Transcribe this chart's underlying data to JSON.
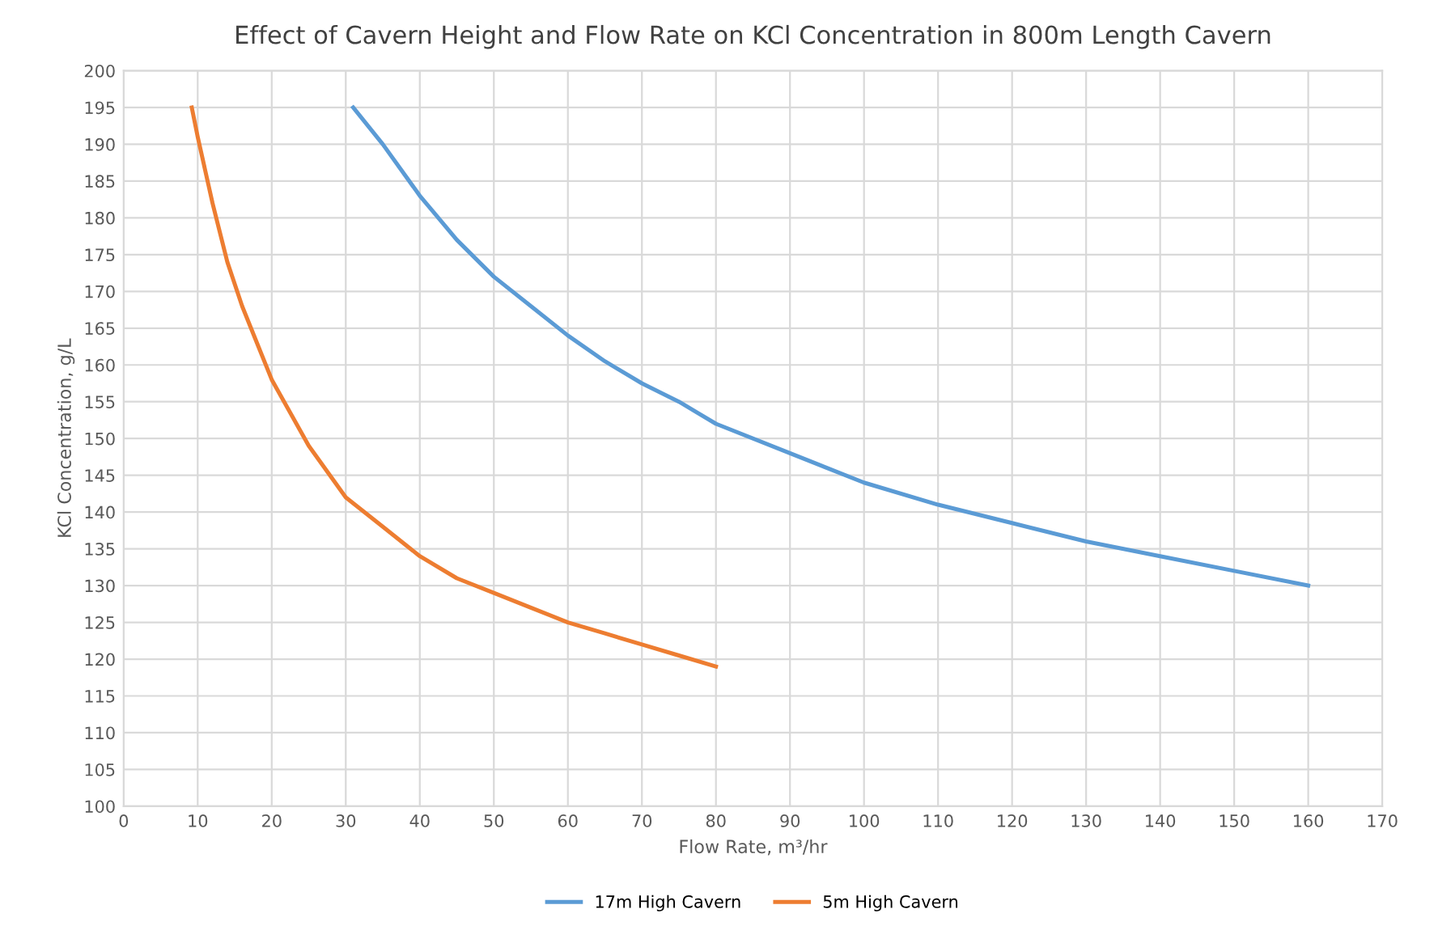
{
  "chart_data": {
    "type": "line",
    "title": "Effect of Cavern Height and Flow Rate on KCl Concentration in 800m Length Cavern",
    "xlabel": "Flow Rate, m³/hr",
    "ylabel": "KCl Concentration, g/L",
    "xlim": [
      0,
      170
    ],
    "xticks": [
      0,
      10,
      20,
      30,
      40,
      50,
      60,
      70,
      80,
      90,
      100,
      110,
      120,
      130,
      140,
      150,
      160,
      170
    ],
    "ylim": [
      100,
      200
    ],
    "yticks": [
      100,
      105,
      110,
      115,
      120,
      125,
      130,
      135,
      140,
      145,
      150,
      155,
      160,
      165,
      170,
      175,
      180,
      185,
      190,
      195,
      200
    ],
    "grid": true,
    "legend": "bottom",
    "marker": "none",
    "line_style": "solid",
    "series": [
      {
        "name": "17m High Cavern",
        "color": "#5b9bd5",
        "x": [
          31,
          35,
          40,
          45,
          50,
          55,
          60,
          65,
          70,
          75,
          80,
          90,
          100,
          110,
          120,
          130,
          140,
          150,
          160
        ],
        "values": [
          195,
          190,
          183,
          177,
          172,
          168,
          164,
          160.5,
          157.5,
          155,
          152,
          148,
          144,
          141,
          138.5,
          136,
          134,
          132,
          130
        ]
      },
      {
        "name": "5m High Cavern",
        "color": "#ed7d31",
        "x": [
          9.2,
          10,
          12,
          14,
          16,
          18,
          20,
          25,
          30,
          35,
          40,
          45,
          50,
          55,
          60,
          65,
          70,
          75,
          80
        ],
        "values": [
          195,
          191,
          182,
          174,
          168,
          163,
          158,
          149,
          142,
          138,
          134,
          131,
          129,
          127,
          125,
          123.5,
          122,
          120.5,
          119
        ]
      }
    ]
  }
}
